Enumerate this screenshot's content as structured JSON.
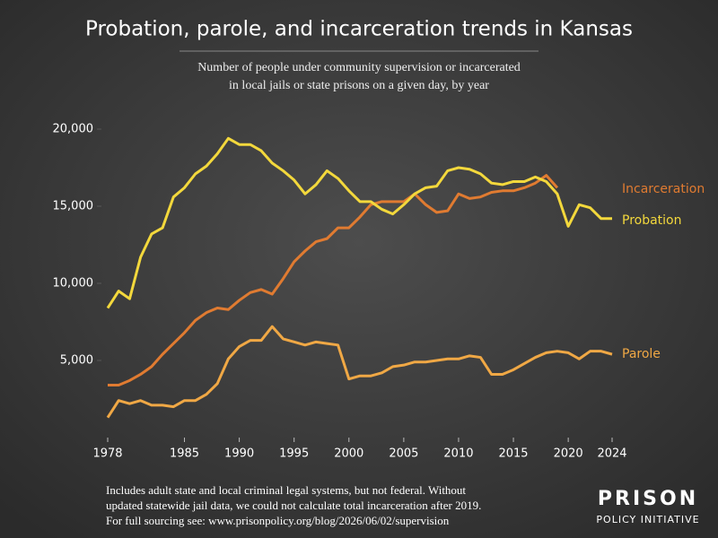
{
  "chart_data": {
    "type": "line",
    "title": "Probation, parole, and incarceration trends in Kansas",
    "subtitle": [
      "Number of people under community supervision or incarcerated",
      "in local jails or state prisons on a given day, by year"
    ],
    "x": [
      1978,
      1979,
      1980,
      1981,
      1982,
      1983,
      1984,
      1985,
      1986,
      1987,
      1988,
      1989,
      1990,
      1991,
      1992,
      1993,
      1994,
      1995,
      1996,
      1997,
      1998,
      1999,
      2000,
      2001,
      2002,
      2003,
      2004,
      2005,
      2006,
      2007,
      2008,
      2009,
      2010,
      2011,
      2012,
      2013,
      2014,
      2015,
      2016,
      2017,
      2018,
      2019,
      2020,
      2021,
      2022,
      2023,
      2024
    ],
    "series": [
      {
        "name": "Incarceration",
        "color": "#e07b31",
        "values": [
          3400,
          3400,
          3700,
          4100,
          4600,
          5400,
          6100,
          6800,
          7600,
          8100,
          8400,
          8300,
          8900,
          9400,
          9600,
          9300,
          10300,
          11400,
          12100,
          12700,
          12900,
          13600,
          13600,
          14300,
          15100,
          15300,
          15300,
          15300,
          15800,
          15100,
          14600,
          14700,
          15800,
          15500,
          15600,
          15900,
          16000,
          16000,
          16200,
          16500,
          17000,
          16200,
          null,
          null,
          null,
          null,
          null
        ]
      },
      {
        "name": "Probation",
        "color": "#f3d83c",
        "values": [
          8400,
          9500,
          9000,
          11700,
          13200,
          13600,
          15600,
          16200,
          17100,
          17600,
          18400,
          19400,
          19000,
          19000,
          18600,
          17800,
          17300,
          16700,
          15800,
          16400,
          17300,
          16800,
          16000,
          15300,
          15300,
          14800,
          14500,
          15100,
          15800,
          16200,
          16300,
          17300,
          17500,
          17400,
          17100,
          16500,
          16400,
          16600,
          16600,
          16900,
          16600,
          15800,
          13700,
          15100,
          14900,
          14200,
          14200
        ]
      },
      {
        "name": "Parole",
        "color": "#f0a845",
        "values": [
          1300,
          2400,
          2200,
          2400,
          2100,
          2100,
          2000,
          2400,
          2400,
          2800,
          3500,
          5100,
          5900,
          6300,
          6300,
          7200,
          6400,
          6200,
          6000,
          6200,
          6100,
          6000,
          3800,
          4000,
          4000,
          4200,
          4600,
          4700,
          4900,
          4900,
          5000,
          5100,
          5100,
          5300,
          5200,
          4100,
          4100,
          4400,
          4800,
          5200,
          5500,
          5600,
          5500,
          5100,
          5600,
          5600,
          5400
        ]
      }
    ],
    "xlim": [
      1978,
      2024
    ],
    "xticks": [
      1978,
      1985,
      1990,
      1995,
      2000,
      2005,
      2010,
      2015,
      2020,
      2024
    ],
    "ylim": [
      0,
      20000
    ],
    "yticks": [
      {
        "value": 5000,
        "label": "5,000"
      },
      {
        "value": 10000,
        "label": "10,000"
      },
      {
        "value": 15000,
        "label": "15,000"
      },
      {
        "value": 20000,
        "label": "20,000"
      }
    ],
    "footnote": [
      "Includes adult state and local criminal legal systems, but not federal. Without",
      "updated statewide jail data, we could not calculate total incarceration after 2019.",
      "For full sourcing see: www.prisonpolicy.org/blog/2026/06/02/supervision"
    ],
    "logo": [
      "PRISON",
      "POLICY INITIATIVE"
    ]
  }
}
